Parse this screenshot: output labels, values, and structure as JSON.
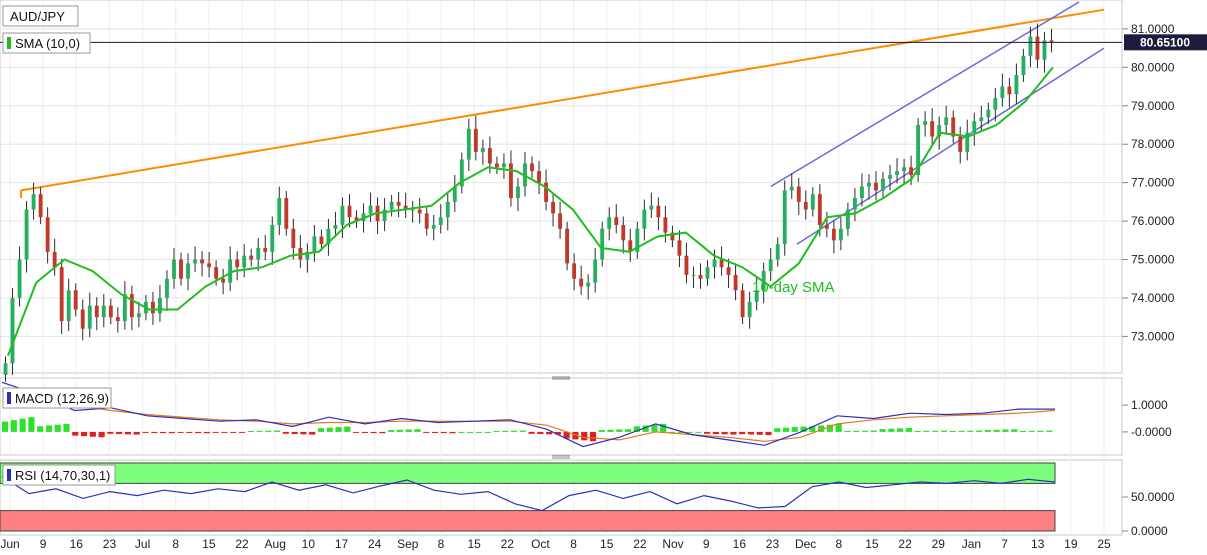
{
  "chart_data": {
    "type": "candlestick",
    "symbol": "AUD/JPY",
    "indicator_sma_label": "SMA (10,0)",
    "annotation_sma": "10-day SMA",
    "last_price_label": "80.65100",
    "last_price": 80.651,
    "price_axis": {
      "ylim": [
        72.1,
        81.7
      ],
      "ticks": [
        {
          "label": "81.0000",
          "value": 81
        },
        {
          "label": "80.0000",
          "value": 80
        },
        {
          "label": "79.0000",
          "value": 79
        },
        {
          "label": "78.0000",
          "value": 78
        },
        {
          "label": "77.0000",
          "value": 77
        },
        {
          "label": "76.0000",
          "value": 76
        },
        {
          "label": "75.0000",
          "value": 75
        },
        {
          "label": "74.0000",
          "value": 74
        },
        {
          "label": "73.0000",
          "value": 73
        }
      ]
    },
    "x_ticks": [
      "Jun",
      "9",
      "16",
      "23",
      "Jul",
      "8",
      "15",
      "22",
      "Aug",
      "10",
      "17",
      "24",
      "Sep",
      "8",
      "15",
      "22",
      "Oct",
      "8",
      "15",
      "22",
      "Nov",
      "9",
      "16",
      "23",
      "Dec",
      "8",
      "15",
      "22",
      "29",
      "Jan",
      "7",
      "13",
      "19",
      "25"
    ],
    "candles_close": [
      72.3,
      74.0,
      75.0,
      76.3,
      76.7,
      76.1,
      75.2,
      74.8,
      73.4,
      74.2,
      73.7,
      73.2,
      73.8,
      73.5,
      73.8,
      73.5,
      73.4,
      74.1,
      73.5,
      73.6,
      73.9,
      73.6,
      74.0,
      74.5,
      75.0,
      74.5,
      74.9,
      75.0,
      74.9,
      74.8,
      74.5,
      74.4,
      75.0,
      74.8,
      75.1,
      75.0,
      75.3,
      75.2,
      75.9,
      76.6,
      75.8,
      75.3,
      75.0,
      75.2,
      75.6,
      75.4,
      75.8,
      75.9,
      76.4,
      76.1,
      76.0,
      76.2,
      76.4,
      76.0,
      76.3,
      76.5,
      76.4,
      76.3,
      76.3,
      76.2,
      75.8,
      75.9,
      76.1,
      76.5,
      76.9,
      77.6,
      78.4,
      77.8,
      77.9,
      77.5,
      77.4,
      77.5,
      76.6,
      76.9,
      77.5,
      77.3,
      77.0,
      76.5,
      76.2,
      75.8,
      74.9,
      74.5,
      74.3,
      74.4,
      75.0,
      75.8,
      76.1,
      75.9,
      75.5,
      75.2,
      75.8,
      76.3,
      76.4,
      76.1,
      75.7,
      75.5,
      75.1,
      74.6,
      74.6,
      74.5,
      74.8,
      75.0,
      74.8,
      74.6,
      74.2,
      73.5,
      73.9,
      74.2,
      74.7,
      75.0,
      75.4,
      76.8,
      76.9,
      76.5,
      76.3,
      76.7,
      75.9,
      75.8,
      75.5,
      75.8,
      76.3,
      76.6,
      76.9,
      77.0,
      76.8,
      77.1,
      77.2,
      77.3,
      77.4,
      77.2,
      78.5,
      78.6,
      78.2,
      78.5,
      78.7,
      78.2,
      77.8,
      78.3,
      78.6,
      78.7,
      78.9,
      79.2,
      79.5,
      79.3,
      79.8,
      80.3,
      80.8,
      80.2,
      80.7,
      80.65
    ],
    "sma_values": [
      72.5,
      74.4,
      75.0,
      74.7,
      74.1,
      73.7,
      73.7,
      74.3,
      74.7,
      74.8,
      75.1,
      75.2,
      75.9,
      76.2,
      76.3,
      76.4,
      77.0,
      77.4,
      77.3,
      76.9,
      76.3,
      75.3,
      75.2,
      75.6,
      75.7,
      75.1,
      74.8,
      74.3,
      74.9,
      76.1,
      76.2,
      76.6,
      77.1,
      78.3,
      78.2,
      78.5,
      79.1,
      80.0
    ],
    "annotation_lines": [
      {
        "name": "resistance-line",
        "color": "#ff8c00"
      },
      {
        "name": "channel-upper",
        "color": "#6a6ad8"
      },
      {
        "name": "channel-lower",
        "color": "#6a6ad8"
      }
    ],
    "macd": {
      "label": "MACD (12,26,9)",
      "ylim": [
        -0.75,
        1.9
      ],
      "ticks": [
        {
          "label": "1.0000",
          "value": 1
        },
        {
          "label": "-0.0000",
          "value": 0
        }
      ],
      "macd_line": [
        1.85,
        1.4,
        0.8,
        0.9,
        0.6,
        0.5,
        0.4,
        0.45,
        0.2,
        0.55,
        0.3,
        0.5,
        0.35,
        0.4,
        0.45,
        0.1,
        -0.55,
        -0.2,
        0.3,
        -0.1,
        -0.3,
        -0.5,
        0.0,
        0.6,
        0.5,
        0.7,
        0.65,
        0.7,
        0.85,
        0.85
      ],
      "signal_line": [
        1.5,
        1.3,
        1.0,
        0.8,
        0.65,
        0.55,
        0.45,
        0.4,
        0.3,
        0.35,
        0.35,
        0.4,
        0.4,
        0.4,
        0.4,
        0.25,
        -0.2,
        -0.3,
        0.0,
        -0.1,
        -0.2,
        -0.35,
        -0.2,
        0.3,
        0.45,
        0.55,
        0.6,
        0.65,
        0.7,
        0.8
      ],
      "histogram": [
        0.55,
        0.3,
        -0.2,
        -0.1,
        -0.05,
        -0.05,
        -0.02,
        0.05,
        -0.1,
        0.2,
        -0.05,
        0.1,
        -0.05,
        0.0,
        0.05,
        -0.1,
        -0.35,
        0.1,
        0.3,
        0.0,
        -0.1,
        -0.12,
        0.2,
        0.3,
        0.05,
        0.15,
        0.05,
        0.05,
        0.1,
        0.05
      ]
    },
    "rsi": {
      "label": "RSI (14,70,30,1)",
      "ylim": [
        0,
        100
      ],
      "ticks": [
        {
          "label": "50.0000",
          "value": 50
        },
        {
          "label": "0.0000",
          "value": 0
        }
      ],
      "overbought": 70,
      "oversold": 30,
      "values": [
        80,
        55,
        62,
        48,
        58,
        52,
        60,
        55,
        62,
        58,
        72,
        60,
        68,
        56,
        66,
        75,
        60,
        54,
        58,
        40,
        30,
        52,
        60,
        48,
        58,
        40,
        52,
        44,
        34,
        36,
        65,
        72,
        64,
        68,
        72,
        70,
        74,
        70,
        76,
        72
      ]
    }
  }
}
